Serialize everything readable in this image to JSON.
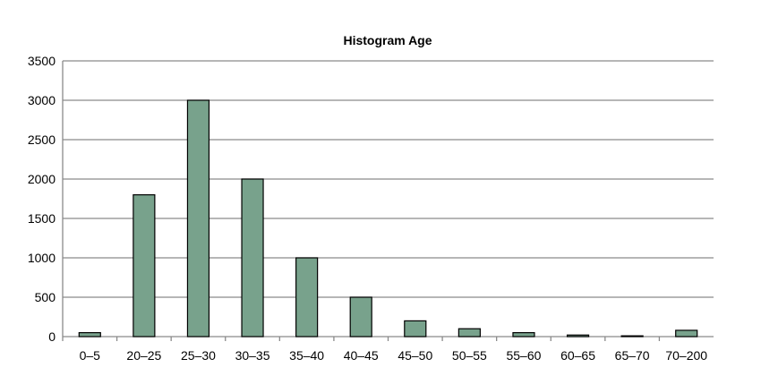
{
  "chart_data": {
    "type": "bar",
    "title": "Histogram Age",
    "xlabel": "",
    "ylabel": "",
    "categories": [
      "0–5",
      "20–25",
      "25–30",
      "30–35",
      "35–40",
      "40–45",
      "45–50",
      "50–55",
      "55–60",
      "60–65",
      "65–70",
      "70–200"
    ],
    "values": [
      50,
      1800,
      3000,
      2000,
      1000,
      500,
      200,
      100,
      50,
      20,
      10,
      80
    ],
    "ylim": [
      0,
      3500
    ],
    "yticks": [
      0,
      500,
      1000,
      1500,
      2000,
      2500,
      3000,
      3500
    ],
    "grid": true,
    "legend": "none",
    "bar_color": "#78a28c",
    "bar_edge_color": "#000000",
    "grid_color": "#8a8a8a"
  }
}
